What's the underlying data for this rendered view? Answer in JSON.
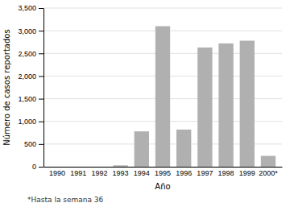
{
  "chart_data": {
    "type": "bar",
    "categories": [
      "1990",
      "1991",
      "1992",
      "1993",
      "1994",
      "1995",
      "1996",
      "1997",
      "1998",
      "1999",
      "2000*"
    ],
    "values": [
      0,
      0,
      0,
      30,
      780,
      3100,
      820,
      2630,
      2720,
      2780,
      240
    ],
    "color": "#b0b0b0",
    "xlabel": "Año",
    "ylabel": "Número de casos reportados",
    "ylim": [
      0,
      3500
    ],
    "yticks": [
      0,
      500,
      {
        "value": 1000,
        "label": "1,000"
      },
      {
        "value": 1500,
        "label": "1,500"
      },
      {
        "value": 2000,
        "label": "2,000"
      },
      {
        "value": 2500,
        "label": "2,500"
      },
      {
        "value": 3000,
        "label": "3,000"
      },
      {
        "value": 3500,
        "label": "3,500"
      }
    ],
    "grid": true,
    "annotations": [
      "*Hasta la semana  36"
    ]
  }
}
